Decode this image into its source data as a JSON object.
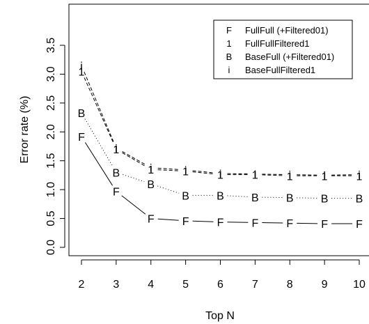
{
  "chart_data": {
    "type": "line",
    "title": "",
    "xlabel": "Top N",
    "ylabel": "Error rate (%)",
    "x": [
      2,
      3,
      4,
      5,
      6,
      7,
      8,
      9,
      10
    ],
    "x_ticks": [
      "2",
      "3",
      "4",
      "5",
      "6",
      "7",
      "8",
      "9",
      "10"
    ],
    "xlim": [
      2,
      10
    ],
    "ylim": [
      0.0,
      3.5
    ],
    "y_ticks": [
      "0.0",
      "0.5",
      "1.0",
      "1.5",
      "2.0",
      "2.5",
      "3.0",
      "3.5"
    ],
    "grid": false,
    "legend_position": "top-right",
    "series": [
      {
        "name": "FullFull (+Filtered01)",
        "marker": "F",
        "line_style": "solid",
        "values": [
          1.92,
          0.97,
          0.5,
          0.46,
          0.44,
          0.43,
          0.42,
          0.41,
          0.41
        ]
      },
      {
        "name": "FullFullFiltered1",
        "marker": "1",
        "line_style": "dashed",
        "values": [
          3.05,
          1.7,
          1.35,
          1.32,
          1.26,
          1.26,
          1.24,
          1.24,
          1.24
        ]
      },
      {
        "name": "BaseFull (+Filtered01)",
        "marker": "B",
        "line_style": "dotted",
        "values": [
          2.33,
          1.3,
          1.1,
          0.9,
          0.9,
          0.87,
          0.86,
          0.85,
          0.85
        ]
      },
      {
        "name": "BaseFullFiltered1",
        "marker": "i",
        "line_style": "dashed",
        "values": [
          3.15,
          1.72,
          1.38,
          1.34,
          1.28,
          1.27,
          1.26,
          1.25,
          1.26
        ]
      }
    ]
  }
}
